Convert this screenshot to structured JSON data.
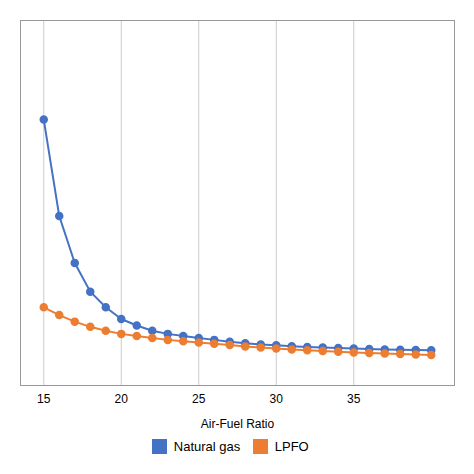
{
  "chart_data": {
    "type": "line",
    "xlabel": "Air-Fuel Ratio",
    "x": [
      15,
      16,
      17,
      18,
      19,
      20,
      21,
      22,
      23,
      24,
      25,
      26,
      27,
      28,
      29,
      30,
      31,
      32,
      33,
      34,
      35,
      36,
      37,
      38,
      39,
      40
    ],
    "series": [
      {
        "name": "Natural gas",
        "color": "#4472C4",
        "marker": "o",
        "values": [
          2820,
          2450,
          2270,
          2160,
          2100,
          2055,
          2030,
          2010,
          1998,
          1990,
          1982,
          1975,
          1968,
          1962,
          1957,
          1954,
          1951,
          1948,
          1946,
          1944,
          1942,
          1940,
          1938,
          1937,
          1936,
          1935
        ]
      },
      {
        "name": "LPFO",
        "color": "#ED7D31",
        "marker": "o",
        "values": [
          2100,
          2070,
          2045,
          2025,
          2010,
          1998,
          1990,
          1982,
          1975,
          1970,
          1965,
          1960,
          1955,
          1950,
          1946,
          1942,
          1938,
          1935,
          1932,
          1929,
          1927,
          1925,
          1923,
          1921,
          1919,
          1917
        ]
      }
    ],
    "xlim": [
      13.5,
      41.5
    ],
    "xticks": [
      15,
      20,
      25,
      30,
      35
    ],
    "ylim": [
      1800,
      3200
    ],
    "yticks": [],
    "grid": true,
    "legend": "bottom",
    "tick_labels": "x"
  }
}
